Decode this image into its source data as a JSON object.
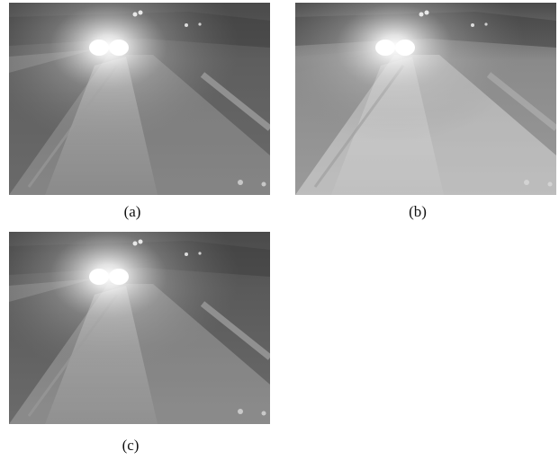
{
  "figure": {
    "panels": [
      {
        "label": "(a)",
        "tone": "#5e5e5e",
        "road": "#6a6a6a",
        "haze": 0.18
      },
      {
        "label": "(b)",
        "tone": "#8a8a8a",
        "road": "#9a9a9a",
        "haze": 0.35
      },
      {
        "label": "(c)",
        "tone": "#5a5a5a",
        "road": "#6b6b6b",
        "haze": 0.22
      }
    ]
  }
}
